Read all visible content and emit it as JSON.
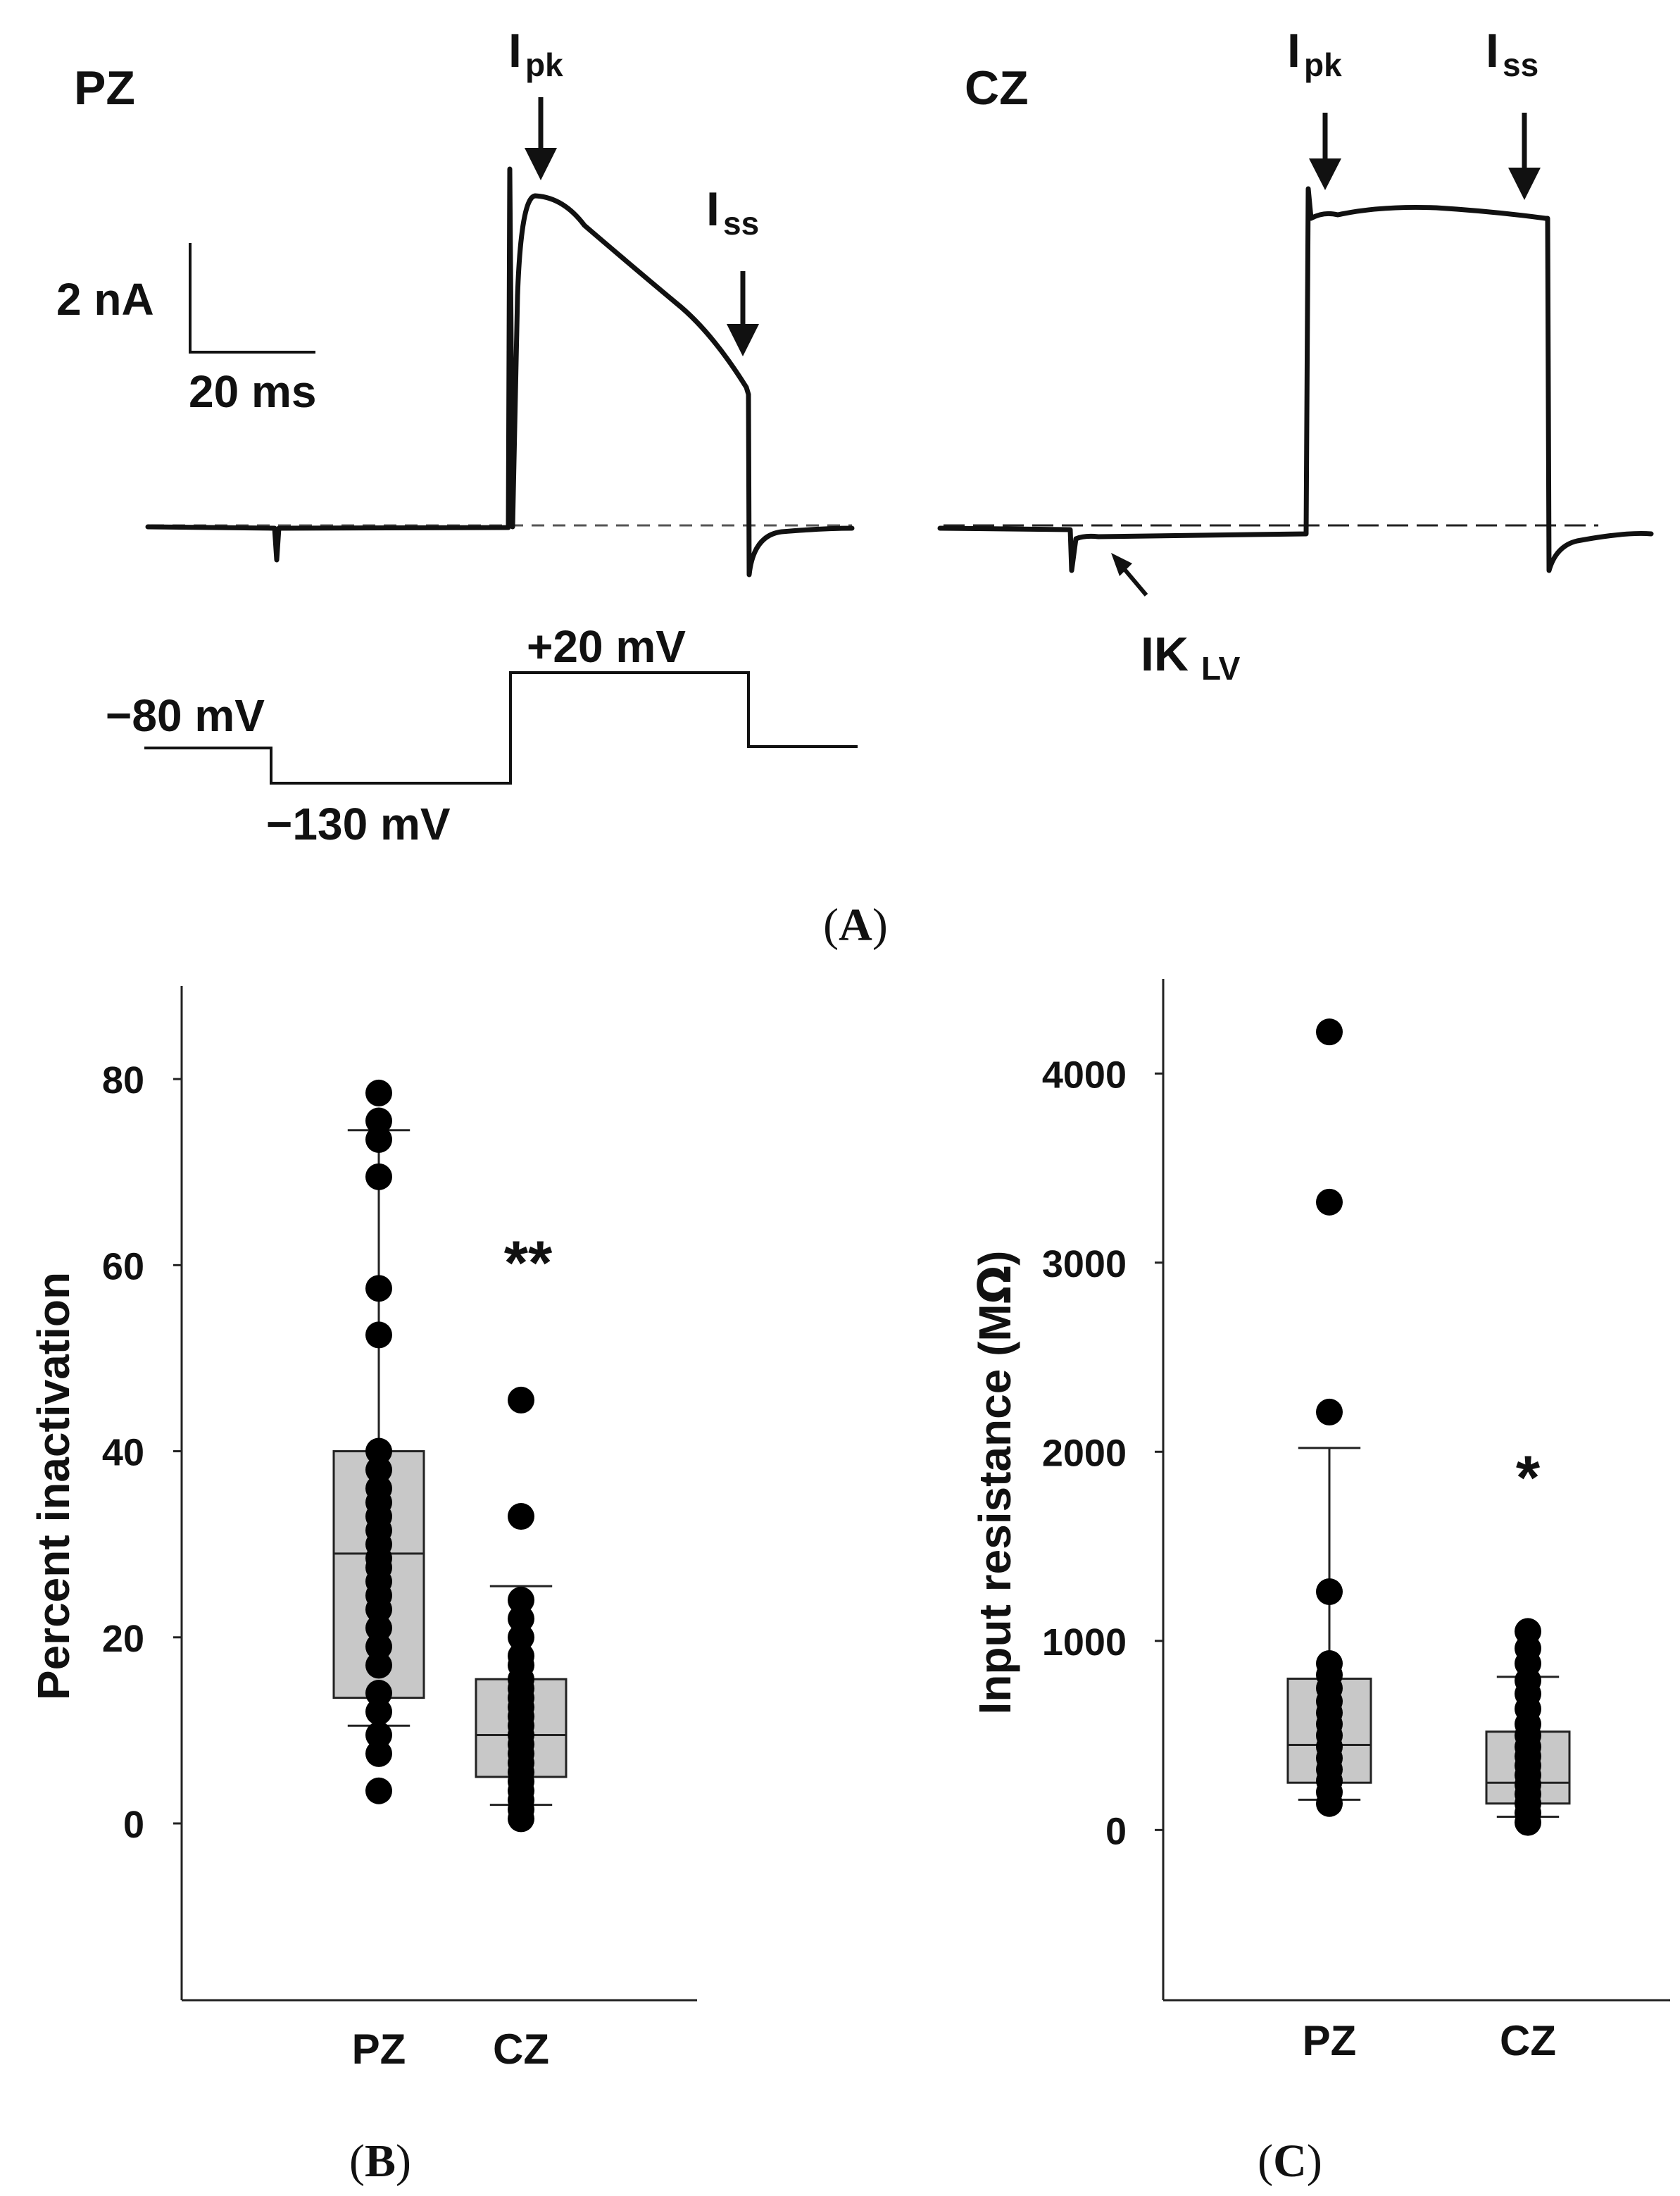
{
  "panel_a": {
    "pz_label": "PZ",
    "cz_label": "CZ",
    "ipk_main": "I",
    "ipk_sub": "pk",
    "iss_main": "I",
    "iss_sub": "ss",
    "scale_current": "2 nA",
    "scale_time": "20 ms",
    "ik_main": "IK",
    "ik_sub": "LV",
    "v_hold": "−80 mV",
    "v_hyper": "−130 mV",
    "v_step": "+20 mV",
    "caption_open": "(",
    "caption_letter": "A",
    "caption_close": ")"
  },
  "chart_data": [
    {
      "type": "box",
      "panel": "B",
      "caption_open": "(",
      "caption_letter": "B",
      "caption_close": ")",
      "ylabel": "Percent inactivation",
      "ylim": [
        -19,
        90
      ],
      "yticks": [
        "0",
        "20",
        "40",
        "60",
        "80"
      ],
      "categories": [
        "PZ",
        "CZ"
      ],
      "significance": "**",
      "significance_value": 61,
      "boxes": [
        {
          "name": "PZ",
          "q1": 13.5,
          "median": 29,
          "q3": 40,
          "whisker_low": 10.5,
          "whisker_high": 74.5,
          "points": [
            3.5,
            7.5,
            9.5,
            12,
            14,
            17,
            19,
            21,
            23,
            24.5,
            26,
            27.5,
            28.5,
            30,
            31.5,
            33,
            34.5,
            36,
            38,
            40,
            52.5,
            57.5,
            69.5,
            73.5,
            75.5,
            78.5
          ]
        },
        {
          "name": "CZ",
          "q1": 5,
          "median": 9.5,
          "q3": 15.5,
          "whisker_low": 2,
          "whisker_high": 25.5,
          "points": [
            0.5,
            1.5,
            2.5,
            3.5,
            4.5,
            5.5,
            6.5,
            7.5,
            8.5,
            9.5,
            10.5,
            11.5,
            12.5,
            13.5,
            14.5,
            15.5,
            17,
            18,
            20,
            22,
            24,
            33,
            45.5
          ]
        }
      ]
    },
    {
      "type": "box",
      "panel": "C",
      "caption_open": "(",
      "caption_letter": "C",
      "caption_close": ")",
      "ylabel_main": "Input resistance (M",
      "ylabel_omega": "Ω",
      "ylabel_close": ")",
      "ylim": [
        -900,
        4500
      ],
      "yticks": [
        "0",
        "1000",
        "2000",
        "3000",
        "4000"
      ],
      "categories": [
        "PZ",
        "CZ"
      ],
      "significance": "*",
      "significance_value": 1900,
      "boxes": [
        {
          "name": "PZ",
          "q1": 250,
          "median": 450,
          "q3": 800,
          "whisker_low": 160,
          "whisker_high": 2020,
          "points": [
            140,
            200,
            260,
            320,
            380,
            440,
            500,
            560,
            620,
            680,
            750,
            820,
            880,
            1260,
            2210,
            3320,
            4220
          ]
        },
        {
          "name": "CZ",
          "q1": 140,
          "median": 250,
          "q3": 520,
          "whisker_low": 70,
          "whisker_high": 810,
          "points": [
            40,
            90,
            140,
            190,
            240,
            290,
            340,
            390,
            440,
            500,
            560,
            640,
            720,
            790,
            880,
            960,
            1050
          ]
        }
      ]
    }
  ]
}
